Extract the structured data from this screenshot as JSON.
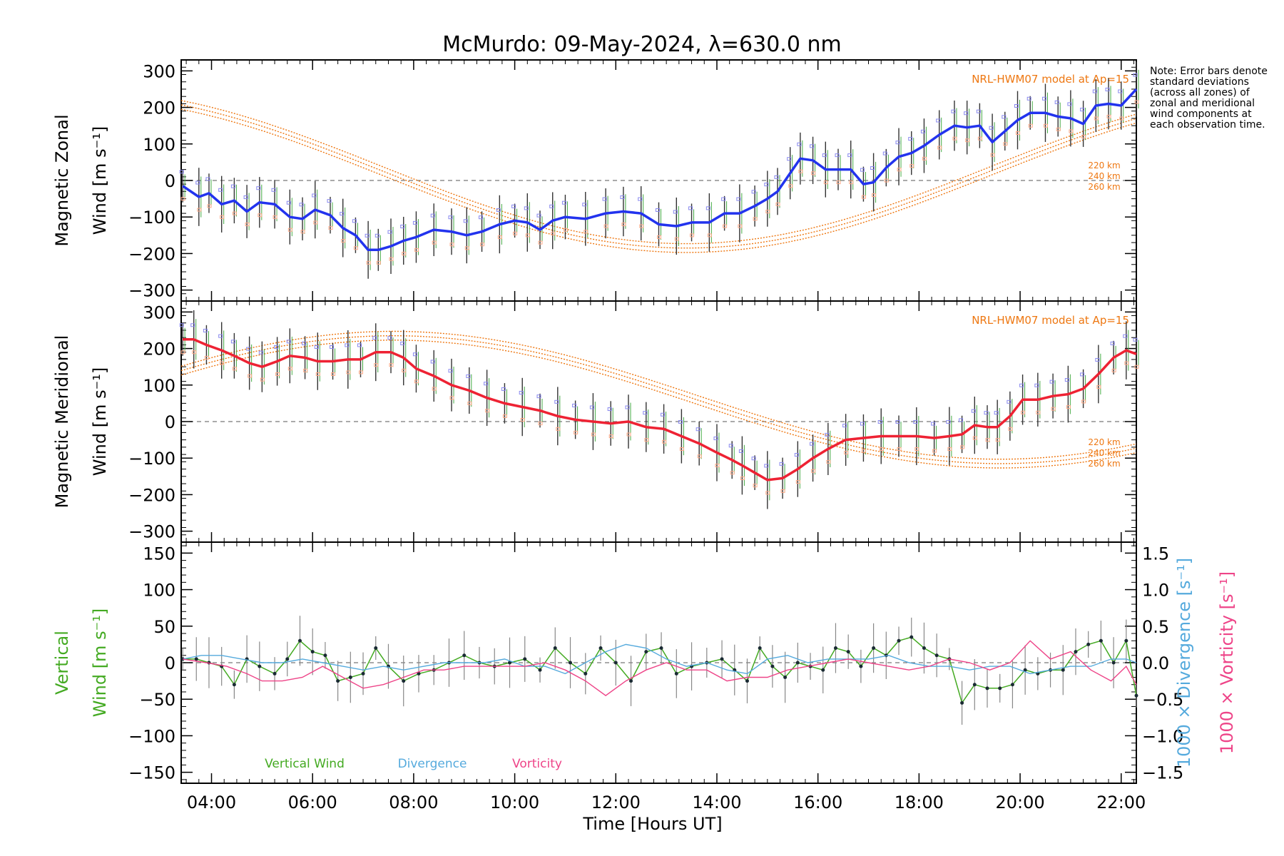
{
  "chart_data": {
    "type": "line",
    "title": "McMurdo: 09-May-2024, λ=630.0 nm",
    "xlabel": "Time [Hours UT]",
    "x_tick_labels": [
      "04:00",
      "06:00",
      "08:00",
      "10:00",
      "12:00",
      "14:00",
      "16:00",
      "18:00",
      "20:00",
      "22:00"
    ],
    "x_tick_hours": [
      4,
      6,
      8,
      10,
      12,
      14,
      16,
      18,
      20,
      22
    ],
    "xlim": [
      3.4,
      22.3
    ],
    "grid": false,
    "note": "Note: Error bars denote standard deviations (across all zones) of zonal and meridional wind components at each observation time.",
    "colors": {
      "zonal": "#2233ee",
      "meridional": "#ee2233",
      "model": "#ee7711",
      "vertical": "#44aa22",
      "divergence": "#55aadd",
      "vorticity": "#ee4488",
      "zero_line": "#777777"
    },
    "panels": [
      {
        "ylabel_line1": "Magnetic Zonal",
        "ylabel_line2": "Wind [m s⁻¹]",
        "ylim": [
          -330,
          330
        ],
        "y_ticks": [
          300,
          200,
          100,
          0,
          -100,
          -200,
          -300
        ],
        "model_label": "NRL-HWM07 model at Ap=15",
        "model_altitudes": [
          "220 km",
          "240 km",
          "260 km"
        ],
        "series": [
          {
            "x": [
              3.43,
              3.75,
              3.95,
              4.2,
              4.45,
              4.7,
              4.95,
              5.25,
              5.55,
              5.8,
              6.05,
              6.35,
              6.6,
              6.85,
              7.1,
              7.3,
              7.55,
              7.8,
              8.05,
              8.4,
              8.75,
              9.05,
              9.35,
              9.7,
              10.0,
              10.25,
              10.5,
              10.75,
              11.0,
              11.4,
              11.8,
              12.15,
              12.5,
              12.85,
              13.2,
              13.5,
              13.85,
              14.15,
              14.45,
              14.75,
              15.0,
              15.2,
              15.45,
              15.65,
              15.9,
              16.15,
              16.4,
              16.65,
              16.9,
              17.1,
              17.35,
              17.6,
              17.85,
              18.1,
              18.4,
              18.7,
              18.95,
              19.2,
              19.45,
              19.7,
              19.95,
              20.2,
              20.5,
              20.75,
              21.0,
              21.25,
              21.5,
              21.75,
              22.0,
              22.3
            ],
            "y": [
              -15,
              -45,
              -35,
              -65,
              -55,
              -85,
              -60,
              -65,
              -100,
              -105,
              -80,
              -95,
              -130,
              -150,
              -190,
              -190,
              -180,
              -165,
              -155,
              -135,
              -140,
              -150,
              -140,
              -120,
              -110,
              -115,
              -135,
              -110,
              -100,
              -105,
              -90,
              -85,
              -90,
              -120,
              -125,
              -115,
              -115,
              -90,
              -90,
              -70,
              -50,
              -30,
              20,
              60,
              55,
              30,
              30,
              30,
              -10,
              -5,
              35,
              65,
              75,
              95,
              125,
              150,
              145,
              150,
              105,
              135,
              165,
              185,
              185,
              175,
              170,
              155,
              205,
              210,
              205,
              250
            ]
          }
        ]
      },
      {
        "ylabel_line1": "Magnetic Meridional",
        "ylabel_line2": "Wind [m s⁻¹]",
        "ylim": [
          -330,
          330
        ],
        "y_ticks": [
          300,
          200,
          100,
          0,
          -100,
          -200,
          -300
        ],
        "model_label": "NRL-HWM07 model at Ap=15",
        "model_altitudes": [
          "220 km",
          "240 km",
          "260 km"
        ],
        "series": [
          {
            "x": [
              3.43,
              3.65,
              3.9,
              4.2,
              4.45,
              4.75,
              5.0,
              5.3,
              5.55,
              5.85,
              6.1,
              6.4,
              6.7,
              6.95,
              7.25,
              7.55,
              7.8,
              8.05,
              8.4,
              8.75,
              9.1,
              9.45,
              9.8,
              10.15,
              10.5,
              10.85,
              11.2,
              11.55,
              11.9,
              12.25,
              12.6,
              12.95,
              13.3,
              13.65,
              14.0,
              14.3,
              14.5,
              14.75,
              15.0,
              15.3,
              15.6,
              15.9,
              16.2,
              16.55,
              16.9,
              17.25,
              17.6,
              17.95,
              18.3,
              18.6,
              18.85,
              19.1,
              19.35,
              19.55,
              19.8,
              20.05,
              20.35,
              20.65,
              20.95,
              21.25,
              21.55,
              21.85,
              22.1,
              22.3
            ],
            "y": [
              225,
              225,
              210,
              195,
              180,
              160,
              150,
              165,
              180,
              175,
              165,
              165,
              170,
              170,
              190,
              190,
              175,
              145,
              125,
              100,
              85,
              65,
              50,
              40,
              30,
              15,
              5,
              0,
              -5,
              0,
              -15,
              -20,
              -40,
              -60,
              -85,
              -105,
              -120,
              -140,
              -160,
              -155,
              -130,
              -100,
              -75,
              -50,
              -45,
              -40,
              -40,
              -40,
              -45,
              -40,
              -35,
              -10,
              -15,
              -15,
              15,
              60,
              60,
              70,
              75,
              90,
              130,
              175,
              195,
              185
            ]
          }
        ]
      },
      {
        "ylabel_line1": "Vertical",
        "ylabel_line2": "Wind [m s⁻¹]",
        "ylim": [
          -165,
          165
        ],
        "y_ticks": [
          150,
          100,
          50,
          0,
          -50,
          -100,
          -150
        ],
        "right_axis_1_label": "1000 × Divergence [s⁻¹]",
        "right_axis_2_label": "1000 × Vorticity [s⁻¹]",
        "right_ylim": [
          -1.65,
          1.65
        ],
        "right_ticks": [
          1.5,
          1.0,
          0.5,
          0.0,
          -0.5,
          -1.0,
          -1.5
        ],
        "right_tick_labels": [
          "1.5",
          "1.0",
          "0.5",
          "0.0",
          "−0.5",
          "−1.0",
          "−1.5"
        ],
        "legend": [
          "Vertical Wind",
          "Divergence",
          "Vorticity"
        ],
        "series": [
          {
            "name": "Vertical Wind",
            "x": [
              3.43,
              3.7,
              3.95,
              4.2,
              4.45,
              4.7,
              4.95,
              5.25,
              5.5,
              5.75,
              6.0,
              6.25,
              6.5,
              6.75,
              7.0,
              7.25,
              7.5,
              7.8,
              8.1,
              8.4,
              8.7,
              9.0,
              9.3,
              9.6,
              9.9,
              10.2,
              10.5,
              10.8,
              11.1,
              11.4,
              11.7,
              12.0,
              12.3,
              12.6,
              12.9,
              13.2,
              13.5,
              13.8,
              14.1,
              14.35,
              14.6,
              14.85,
              15.1,
              15.35,
              15.6,
              15.85,
              16.1,
              16.35,
              16.6,
              16.85,
              17.1,
              17.35,
              17.6,
              17.85,
              18.1,
              18.35,
              18.6,
              18.85,
              19.1,
              19.35,
              19.6,
              19.85,
              20.1,
              20.35,
              20.6,
              20.85,
              21.1,
              21.35,
              21.6,
              21.85,
              22.1,
              22.3
            ],
            "y": [
              5,
              5,
              0,
              -5,
              -30,
              5,
              -5,
              -15,
              5,
              30,
              15,
              10,
              -25,
              -20,
              -15,
              20,
              -5,
              -25,
              -15,
              -10,
              0,
              10,
              0,
              -5,
              0,
              5,
              -10,
              20,
              0,
              -15,
              20,
              0,
              -25,
              15,
              20,
              -15,
              -5,
              0,
              5,
              -10,
              -25,
              20,
              -5,
              -20,
              0,
              -5,
              -10,
              20,
              15,
              -5,
              20,
              10,
              30,
              35,
              20,
              10,
              5,
              -55,
              -30,
              -35,
              -35,
              -30,
              -10,
              -15,
              -10,
              -10,
              15,
              25,
              30,
              0,
              30,
              -45
            ]
          },
          {
            "name": "Divergence",
            "x": [
              3.43,
              3.8,
              4.2,
              4.6,
              5.0,
              5.4,
              5.8,
              6.2,
              6.6,
              7.0,
              7.4,
              7.8,
              8.2,
              8.6,
              9.0,
              9.4,
              9.8,
              10.2,
              10.6,
              11.0,
              11.4,
              11.8,
              12.2,
              12.6,
              13.0,
              13.4,
              13.8,
              14.2,
              14.6,
              15.0,
              15.4,
              15.8,
              16.2,
              16.6,
              17.0,
              17.4,
              17.8,
              18.2,
              18.6,
              19.0,
              19.4,
              19.8,
              20.2,
              20.6,
              21.0,
              21.4,
              21.8,
              22.1,
              22.3
            ],
            "y": [
              0.05,
              0.1,
              0.1,
              0.05,
              0.0,
              0.0,
              0.05,
              0.0,
              -0.05,
              -0.1,
              -0.05,
              -0.1,
              -0.05,
              0.0,
              0.0,
              0.0,
              0.05,
              -0.05,
              -0.05,
              -0.15,
              0.0,
              0.15,
              0.25,
              0.2,
              0.05,
              -0.05,
              0.0,
              -0.1,
              -0.15,
              0.05,
              0.1,
              0.0,
              0.05,
              0.05,
              0.05,
              0.1,
              0.0,
              -0.05,
              -0.05,
              -0.1,
              -0.05,
              -0.05,
              -0.15,
              -0.1,
              -0.05,
              -0.05,
              0.05,
              0.05,
              0.0
            ]
          },
          {
            "name": "Vorticity",
            "x": [
              3.43,
              3.9,
              4.3,
              4.7,
              5.0,
              5.4,
              5.8,
              6.2,
              6.6,
              7.0,
              7.4,
              7.8,
              8.2,
              8.6,
              9.0,
              9.4,
              9.8,
              10.2,
              10.6,
              11.0,
              11.4,
              11.8,
              12.2,
              12.6,
              13.0,
              13.4,
              13.8,
              14.2,
              14.6,
              15.0,
              15.4,
              15.8,
              16.2,
              16.6,
              17.0,
              17.4,
              17.8,
              18.2,
              18.6,
              19.0,
              19.4,
              19.8,
              20.2,
              20.6,
              21.0,
              21.4,
              21.8,
              22.1,
              22.3
            ],
            "y": [
              0.05,
              0.0,
              -0.05,
              -0.15,
              -0.25,
              -0.25,
              -0.2,
              -0.05,
              -0.2,
              -0.35,
              -0.3,
              -0.2,
              -0.1,
              -0.1,
              -0.05,
              -0.05,
              -0.05,
              -0.05,
              0.0,
              -0.1,
              -0.25,
              -0.45,
              -0.25,
              -0.1,
              0.0,
              -0.1,
              -0.1,
              -0.25,
              -0.2,
              -0.2,
              -0.1,
              -0.05,
              0.0,
              0.05,
              0.0,
              -0.05,
              -0.1,
              -0.05,
              0.05,
              0.0,
              -0.1,
              0.0,
              0.3,
              0.05,
              0.15,
              -0.1,
              -0.25,
              -0.05,
              -0.3
            ]
          }
        ]
      }
    ]
  }
}
